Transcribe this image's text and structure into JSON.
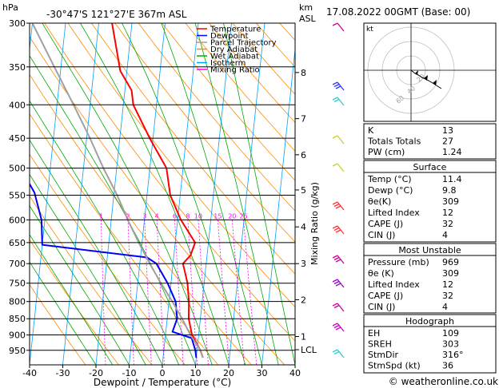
{
  "header": {
    "pressure_unit": "hPa",
    "location": "-30°47'S  121°27'E  367m  ASL",
    "height_unit": "km",
    "height_unit2": "ASL",
    "datetime": "17.08.2022  00GMT  (Base: 00)"
  },
  "legend": {
    "items": [
      {
        "label": "Temperature",
        "color": "#ff0000"
      },
      {
        "label": "Dewpoint",
        "color": "#0000ff"
      },
      {
        "label": "Parcel Trajectory",
        "color": "#a0a0a0"
      },
      {
        "label": "Dry Adiabat",
        "color": "#ff8c00"
      },
      {
        "label": "Wet Adiabat",
        "color": "#00aa00"
      },
      {
        "label": "Isotherm",
        "color": "#00a0ff"
      },
      {
        "label": "Mixing Ratio",
        "color": "#ff00ff"
      }
    ]
  },
  "hodograph": {
    "label": "kt",
    "ring_labels": [
      "20",
      "40",
      "60"
    ]
  },
  "indices": {
    "top": [
      {
        "label": "K",
        "value": "13"
      },
      {
        "label": "Totals Totals",
        "value": "27"
      },
      {
        "label": "PW (cm)",
        "value": "1.24"
      }
    ],
    "surface": {
      "title": "Surface",
      "rows": [
        {
          "label": "Temp (°C)",
          "value": "11.4"
        },
        {
          "label": "Dewp (°C)",
          "value": "9.8"
        },
        {
          "label": "θe(K)",
          "value": "309"
        },
        {
          "label": "Lifted Index",
          "value": "12"
        },
        {
          "label": "CAPE (J)",
          "value": "32"
        },
        {
          "label": "CIN (J)",
          "value": "4"
        }
      ]
    },
    "most_unstable": {
      "title": "Most Unstable",
      "rows": [
        {
          "label": "Pressure (mb)",
          "value": "969"
        },
        {
          "label": "θe (K)",
          "value": "309"
        },
        {
          "label": "Lifted Index",
          "value": "12"
        },
        {
          "label": "CAPE (J)",
          "value": "32"
        },
        {
          "label": "CIN (J)",
          "value": "4"
        }
      ]
    },
    "hodograph_table": {
      "title": "Hodograph",
      "rows": [
        {
          "label": "EH",
          "value": "109"
        },
        {
          "label": "SREH",
          "value": "303"
        },
        {
          "label": "StmDir",
          "value": "316°"
        },
        {
          "label": "StmSpd (kt)",
          "value": "36"
        }
      ]
    }
  },
  "copyright": "© weatheronline.co.uk",
  "chart_data": {
    "type": "line",
    "xlabel": "Dewpoint / Temperature (°C)",
    "ylabel": "",
    "right_axis_label": "Mixing Ratio (g/kg)",
    "xlim": [
      -40,
      40
    ],
    "ylim_hpa": [
      300,
      1000
    ],
    "x_ticks": [
      "-40",
      "-30",
      "-20",
      "-10",
      "0",
      "10",
      "20",
      "30",
      "40"
    ],
    "pressure_levels": [
      300,
      350,
      400,
      450,
      500,
      550,
      600,
      650,
      700,
      750,
      800,
      850,
      900,
      950
    ],
    "height_ticks_km": [
      {
        "label": "8",
        "p": 357
      },
      {
        "label": "7",
        "p": 420
      },
      {
        "label": "6",
        "p": 477
      },
      {
        "label": "5",
        "p": 540
      },
      {
        "label": "4",
        "p": 615
      },
      {
        "label": "3",
        "p": 700
      },
      {
        "label": "2",
        "p": 795
      },
      {
        "label": "1",
        "p": 905
      },
      {
        "label": "LCL",
        "p": 948
      }
    ],
    "mixing_ratio_labels": [
      "1",
      "2",
      "3",
      "4",
      "6",
      "8",
      "10",
      "15",
      "20",
      "25"
    ],
    "series": [
      {
        "name": "Temperature",
        "points": [
          [
            975,
            12
          ],
          [
            950,
            11
          ],
          [
            900,
            8
          ],
          [
            850,
            6.5
          ],
          [
            800,
            6
          ],
          [
            750,
            5
          ],
          [
            700,
            3
          ],
          [
            680,
            5
          ],
          [
            650,
            6
          ],
          [
            600,
            1
          ],
          [
            550,
            -3
          ],
          [
            500,
            -5
          ],
          [
            450,
            -11
          ],
          [
            400,
            -17
          ],
          [
            380,
            -18
          ],
          [
            355,
            -22
          ],
          [
            300,
            -26
          ]
        ]
      },
      {
        "name": "Dewpoint",
        "points": [
          [
            975,
            10
          ],
          [
            950,
            9.5
          ],
          [
            910,
            8
          ],
          [
            890,
            2
          ],
          [
            850,
            3
          ],
          [
            800,
            2
          ],
          [
            750,
            -1
          ],
          [
            700,
            -5
          ],
          [
            685,
            -8
          ],
          [
            655,
            -40
          ],
          [
            600,
            -41
          ],
          [
            545,
            -44
          ],
          [
            500,
            -49
          ],
          [
            450,
            -55
          ],
          [
            400,
            -55
          ],
          [
            370,
            -58
          ],
          [
            345,
            -55
          ],
          [
            310,
            -56
          ],
          [
            300,
            -55
          ]
        ]
      },
      {
        "name": "Parcel Trajectory",
        "points": [
          [
            975,
            12
          ],
          [
            950,
            11
          ],
          [
            900,
            7.5
          ],
          [
            850,
            4.5
          ],
          [
            800,
            1
          ],
          [
            750,
            -3
          ],
          [
            700,
            -7
          ],
          [
            650,
            -11
          ],
          [
            600,
            -15
          ],
          [
            550,
            -19
          ],
          [
            500,
            -24
          ],
          [
            450,
            -29
          ],
          [
            400,
            -35
          ],
          [
            350,
            -42
          ],
          [
            300,
            -50
          ]
        ]
      }
    ]
  }
}
